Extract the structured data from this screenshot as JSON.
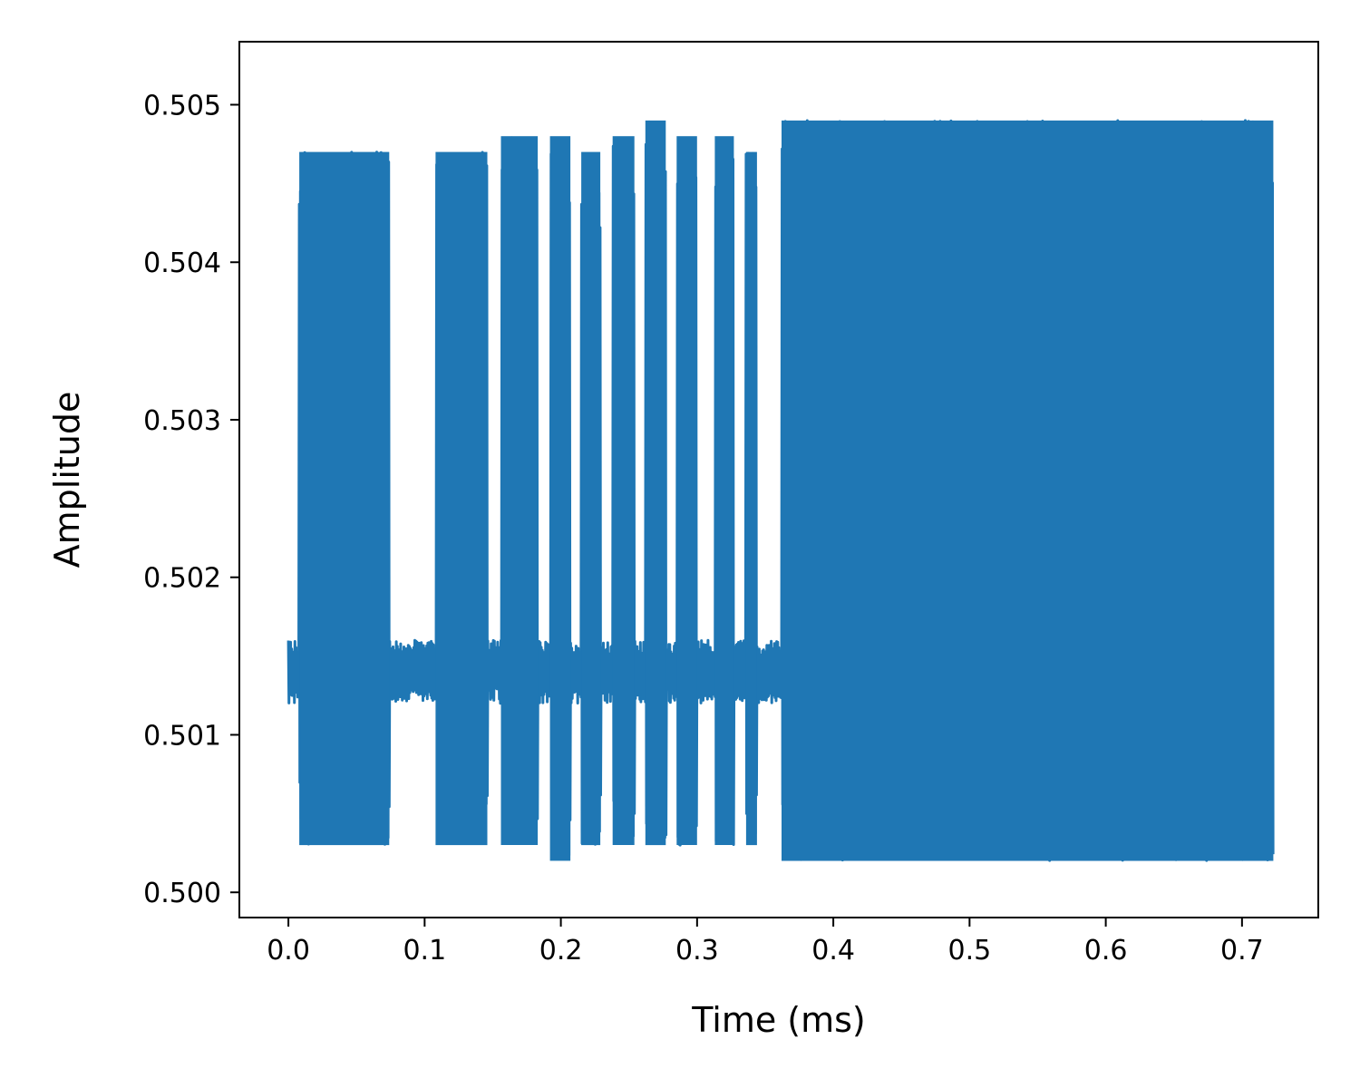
{
  "chart_data": {
    "type": "line",
    "title": "",
    "xlabel": "Time (ms)",
    "ylabel": "Amplitude",
    "xlim": [
      -0.036,
      0.756
    ],
    "ylim": [
      0.49984,
      0.5054
    ],
    "xticks": [
      {
        "value": 0.0,
        "label": "0.0"
      },
      {
        "value": 0.1,
        "label": "0.1"
      },
      {
        "value": 0.2,
        "label": "0.2"
      },
      {
        "value": 0.3,
        "label": "0.3"
      },
      {
        "value": 0.4,
        "label": "0.4"
      },
      {
        "value": 0.5,
        "label": "0.5"
      },
      {
        "value": 0.6,
        "label": "0.6"
      },
      {
        "value": 0.7,
        "label": "0.7"
      }
    ],
    "yticks": [
      {
        "value": 0.5,
        "label": "0.500"
      },
      {
        "value": 0.501,
        "label": "0.501"
      },
      {
        "value": 0.502,
        "label": "0.502"
      },
      {
        "value": 0.503,
        "label": "0.503"
      },
      {
        "value": 0.504,
        "label": "0.504"
      },
      {
        "value": 0.505,
        "label": "0.505"
      }
    ],
    "grid": false,
    "legend": "none",
    "series": [
      {
        "color": "#1f77b4",
        "baseline": 0.5014,
        "idle_band": [
          0.5012,
          0.5016
        ],
        "x_end": 0.723,
        "bursts": [
          {
            "start": 0.008,
            "end": 0.074,
            "min": 0.5003,
            "max": 0.5047
          },
          {
            "start": 0.108,
            "end": 0.146,
            "min": 0.5003,
            "max": 0.5047
          },
          {
            "start": 0.156,
            "end": 0.183,
            "min": 0.5003,
            "max": 0.5048
          },
          {
            "start": 0.192,
            "end": 0.207,
            "min": 0.5002,
            "max": 0.5048
          },
          {
            "start": 0.215,
            "end": 0.229,
            "min": 0.5003,
            "max": 0.5047
          },
          {
            "start": 0.238,
            "end": 0.254,
            "min": 0.5003,
            "max": 0.5048
          },
          {
            "start": 0.262,
            "end": 0.277,
            "min": 0.5003,
            "max": 0.5049
          },
          {
            "start": 0.285,
            "end": 0.3,
            "min": 0.5003,
            "max": 0.5048
          },
          {
            "start": 0.313,
            "end": 0.327,
            "min": 0.5003,
            "max": 0.5048
          },
          {
            "start": 0.336,
            "end": 0.344,
            "min": 0.5003,
            "max": 0.5047
          },
          {
            "start": 0.362,
            "end": 0.723,
            "min": 0.5002,
            "max": 0.5049
          }
        ]
      }
    ]
  }
}
